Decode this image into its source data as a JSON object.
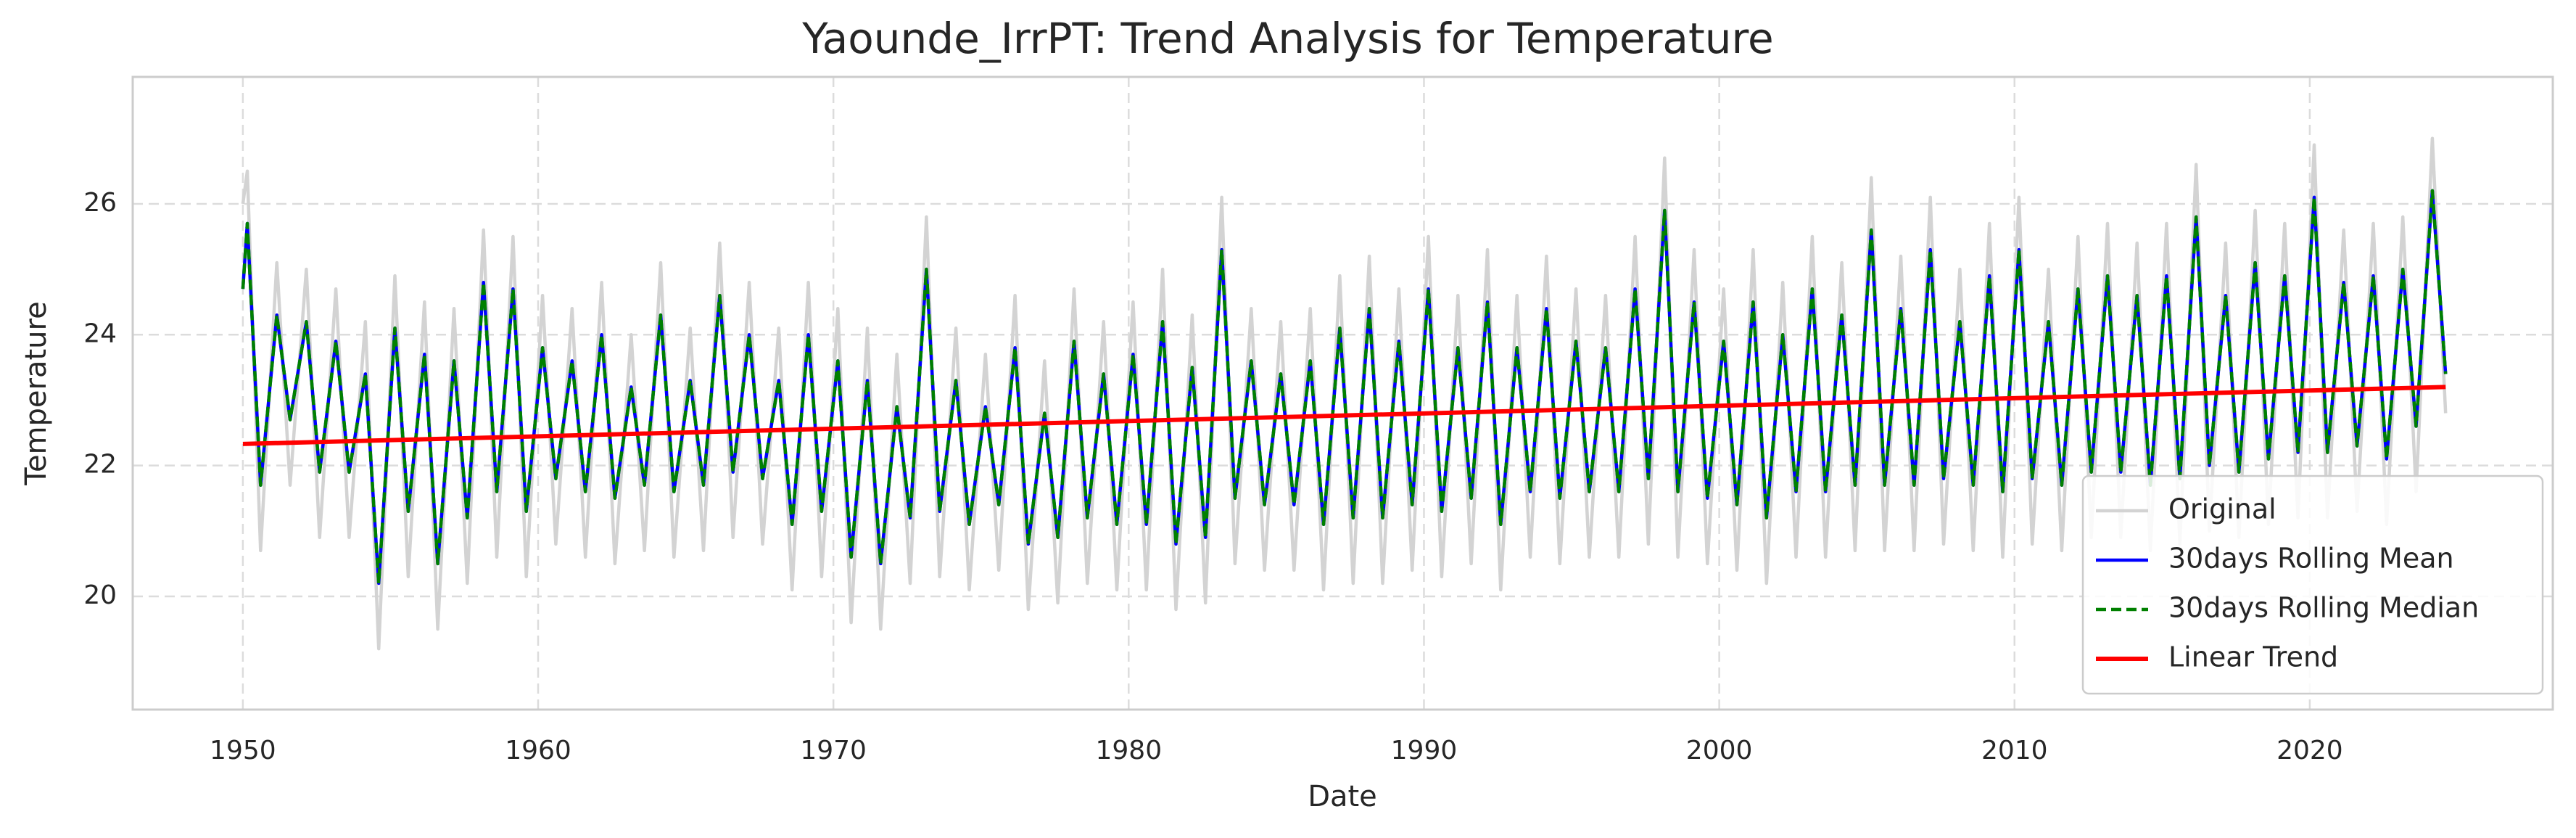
{
  "chart_data": {
    "type": "line",
    "title": "Yaounde_IrrPT: Trend Analysis for Temperature",
    "x_label": "Date",
    "y_label": "Temperature",
    "xlim": [
      1946.27,
      2028.23
    ],
    "xticks": [
      1950,
      1960,
      1970,
      1980,
      1990,
      2000,
      2010,
      2020
    ],
    "ylim": [
      18.27,
      27.94
    ],
    "yticks": [
      20,
      22,
      24,
      26
    ],
    "grid": true,
    "legend_loc": "lower right",
    "x": [
      1950,
      1950.15,
      1950.6,
      1951.15,
      1951.6,
      1952.15,
      1952.6,
      1953.15,
      1953.6,
      1954.15,
      1954.6,
      1955.15,
      1955.6,
      1956.15,
      1956.6,
      1957.15,
      1957.6,
      1958.15,
      1958.6,
      1959.15,
      1959.6,
      1960.15,
      1960.6,
      1961.15,
      1961.6,
      1962.15,
      1962.6,
      1963.15,
      1963.6,
      1964.15,
      1964.6,
      1965.15,
      1965.6,
      1966.15,
      1966.6,
      1967.15,
      1967.6,
      1968.15,
      1968.6,
      1969.15,
      1969.6,
      1970.15,
      1970.6,
      1971.15,
      1971.6,
      1972.15,
      1972.6,
      1973.15,
      1973.6,
      1974.15,
      1974.6,
      1975.15,
      1975.6,
      1976.15,
      1976.6,
      1977.15,
      1977.6,
      1978.15,
      1978.6,
      1979.15,
      1979.6,
      1980.15,
      1980.6,
      1981.15,
      1981.6,
      1982.15,
      1982.6,
      1983.15,
      1983.6,
      1984.15,
      1984.6,
      1985.15,
      1985.6,
      1986.15,
      1986.6,
      1987.15,
      1987.6,
      1988.15,
      1988.6,
      1989.15,
      1989.6,
      1990.15,
      1990.6,
      1991.15,
      1991.6,
      1992.15,
      1992.6,
      1993.15,
      1993.6,
      1994.15,
      1994.6,
      1995.15,
      1995.6,
      1996.15,
      1996.6,
      1997.15,
      1997.6,
      1998.15,
      1998.6,
      1999.15,
      1999.6,
      2000.15,
      2000.6,
      2001.15,
      2001.6,
      2002.15,
      2002.6,
      2003.15,
      2003.6,
      2004.15,
      2004.6,
      2005.15,
      2005.6,
      2006.15,
      2006.6,
      2007.15,
      2007.6,
      2008.15,
      2008.6,
      2009.15,
      2009.6,
      2010.15,
      2010.6,
      2011.15,
      2011.6,
      2012.15,
      2012.6,
      2013.15,
      2013.6,
      2014.15,
      2014.6,
      2015.15,
      2015.6,
      2016.15,
      2016.6,
      2017.15,
      2017.6,
      2018.15,
      2018.6,
      2019.15,
      2019.6,
      2020.15,
      2020.6,
      2021.15,
      2021.6,
      2022.15,
      2022.6,
      2023.15,
      2023.6,
      2024.15,
      2024.6
    ],
    "series": [
      {
        "name": "Original",
        "color": "#d3d3d3",
        "linestyle": "solid",
        "values": [
          26.0,
          26.5,
          20.7,
          25.1,
          21.7,
          25.0,
          20.9,
          24.7,
          20.9,
          24.2,
          19.2,
          24.9,
          20.3,
          24.5,
          19.5,
          24.4,
          20.2,
          25.6,
          20.6,
          25.5,
          20.3,
          24.6,
          20.8,
          24.4,
          20.6,
          24.8,
          20.5,
          24.0,
          20.7,
          25.1,
          20.6,
          24.1,
          20.7,
          25.4,
          20.9,
          24.8,
          20.8,
          24.1,
          20.1,
          24.8,
          20.3,
          24.4,
          19.6,
          24.1,
          19.5,
          23.7,
          20.2,
          25.8,
          20.3,
          24.1,
          20.1,
          23.7,
          20.4,
          24.6,
          19.8,
          23.6,
          19.9,
          24.7,
          20.2,
          24.2,
          20.1,
          24.5,
          20.1,
          25.0,
          19.8,
          24.3,
          19.9,
          26.1,
          20.5,
          24.4,
          20.4,
          24.2,
          20.4,
          24.4,
          20.1,
          24.9,
          20.2,
          25.2,
          20.2,
          24.7,
          20.4,
          25.5,
          20.3,
          24.6,
          20.5,
          25.3,
          20.1,
          24.6,
          20.6,
          25.2,
          20.5,
          24.7,
          20.6,
          24.6,
          20.6,
          25.5,
          20.8,
          26.7,
          20.6,
          25.3,
          20.5,
          24.7,
          20.4,
          25.3,
          20.2,
          24.8,
          20.6,
          25.5,
          20.6,
          25.1,
          20.7,
          26.4,
          20.7,
          25.2,
          20.7,
          26.1,
          20.8,
          25.0,
          20.7,
          25.7,
          20.6,
          26.1,
          20.8,
          25.0,
          20.7,
          25.5,
          20.9,
          25.7,
          20.9,
          25.4,
          20.7,
          25.7,
          20.8,
          26.6,
          21.0,
          25.4,
          20.9,
          25.9,
          21.1,
          25.7,
          21.2,
          26.9,
          21.2,
          25.6,
          21.3,
          25.7,
          21.1,
          25.8,
          21.6,
          27.0,
          22.8
        ]
      },
      {
        "name": "30days Rolling Mean",
        "color": "#0000ff",
        "linestyle": "solid",
        "values": [
          24.7,
          25.7,
          21.7,
          24.3,
          22.7,
          24.2,
          21.9,
          23.9,
          21.9,
          23.4,
          20.2,
          24.1,
          21.3,
          23.7,
          20.5,
          23.6,
          21.2,
          24.8,
          21.6,
          24.7,
          21.3,
          23.8,
          21.8,
          23.6,
          21.6,
          24.0,
          21.5,
          23.2,
          21.7,
          24.3,
          21.6,
          23.3,
          21.7,
          24.6,
          21.9,
          24.0,
          21.8,
          23.3,
          21.1,
          24.0,
          21.3,
          23.6,
          20.6,
          23.3,
          20.5,
          22.9,
          21.2,
          25.0,
          21.3,
          23.3,
          21.1,
          22.9,
          21.4,
          23.8,
          20.8,
          22.8,
          20.9,
          23.9,
          21.2,
          23.4,
          21.1,
          23.7,
          21.1,
          24.2,
          20.8,
          23.5,
          20.9,
          25.3,
          21.5,
          23.6,
          21.4,
          23.4,
          21.4,
          23.6,
          21.1,
          24.1,
          21.2,
          24.4,
          21.2,
          23.9,
          21.4,
          24.7,
          21.3,
          23.8,
          21.5,
          24.5,
          21.1,
          23.8,
          21.6,
          24.4,
          21.5,
          23.9,
          21.6,
          23.8,
          21.6,
          24.7,
          21.8,
          25.9,
          21.6,
          24.5,
          21.5,
          23.9,
          21.4,
          24.5,
          21.2,
          24.0,
          21.6,
          24.7,
          21.6,
          24.3,
          21.7,
          25.6,
          21.7,
          24.4,
          21.7,
          25.3,
          21.8,
          24.2,
          21.7,
          24.9,
          21.6,
          25.3,
          21.8,
          24.2,
          21.7,
          24.7,
          21.9,
          24.9,
          21.9,
          24.6,
          21.7,
          24.9,
          21.8,
          25.8,
          22.0,
          24.6,
          21.9,
          25.1,
          22.1,
          24.9,
          22.2,
          26.1,
          22.2,
          24.8,
          22.3,
          24.9,
          22.1,
          25.0,
          22.6,
          26.2,
          23.4
        ]
      },
      {
        "name": "30days Rolling Median",
        "color": "#008000",
        "linestyle": "dashed",
        "values": [
          24.7,
          25.7,
          21.7,
          24.3,
          22.7,
          24.2,
          21.9,
          23.9,
          21.9,
          23.4,
          20.2,
          24.1,
          21.3,
          23.7,
          20.5,
          23.6,
          21.2,
          24.8,
          21.6,
          24.7,
          21.3,
          23.8,
          21.8,
          23.6,
          21.6,
          24.0,
          21.5,
          23.2,
          21.7,
          24.3,
          21.6,
          23.3,
          21.7,
          24.6,
          21.9,
          24.0,
          21.8,
          23.3,
          21.1,
          24.0,
          21.3,
          23.6,
          20.6,
          23.3,
          20.5,
          22.9,
          21.2,
          25.0,
          21.3,
          23.3,
          21.1,
          22.9,
          21.4,
          23.8,
          20.8,
          22.8,
          20.9,
          23.9,
          21.2,
          23.4,
          21.1,
          23.7,
          21.1,
          24.2,
          20.8,
          23.5,
          20.9,
          25.3,
          21.5,
          23.6,
          21.4,
          23.4,
          21.4,
          23.6,
          21.1,
          24.1,
          21.2,
          24.4,
          21.2,
          23.9,
          21.4,
          24.7,
          21.3,
          23.8,
          21.5,
          24.5,
          21.1,
          23.8,
          21.6,
          24.4,
          21.5,
          23.9,
          21.6,
          23.8,
          21.6,
          24.7,
          21.8,
          25.9,
          21.6,
          24.5,
          21.5,
          23.9,
          21.4,
          24.5,
          21.2,
          24.0,
          21.6,
          24.7,
          21.6,
          24.3,
          21.7,
          25.6,
          21.7,
          24.4,
          21.7,
          25.3,
          21.8,
          24.2,
          21.7,
          24.9,
          21.6,
          25.3,
          21.8,
          24.2,
          21.7,
          24.7,
          21.9,
          24.9,
          21.9,
          24.6,
          21.7,
          24.9,
          21.8,
          25.8,
          22.0,
          24.6,
          21.9,
          25.1,
          22.1,
          24.9,
          22.2,
          26.1,
          22.2,
          24.8,
          22.3,
          24.9,
          22.1,
          25.0,
          22.6,
          26.2,
          23.4
        ]
      },
      {
        "name": "Linear Trend",
        "color": "#ff0000",
        "linestyle": "solid",
        "x": [
          1950,
          2024.6
        ],
        "values": [
          22.33,
          23.2
        ]
      }
    ]
  }
}
